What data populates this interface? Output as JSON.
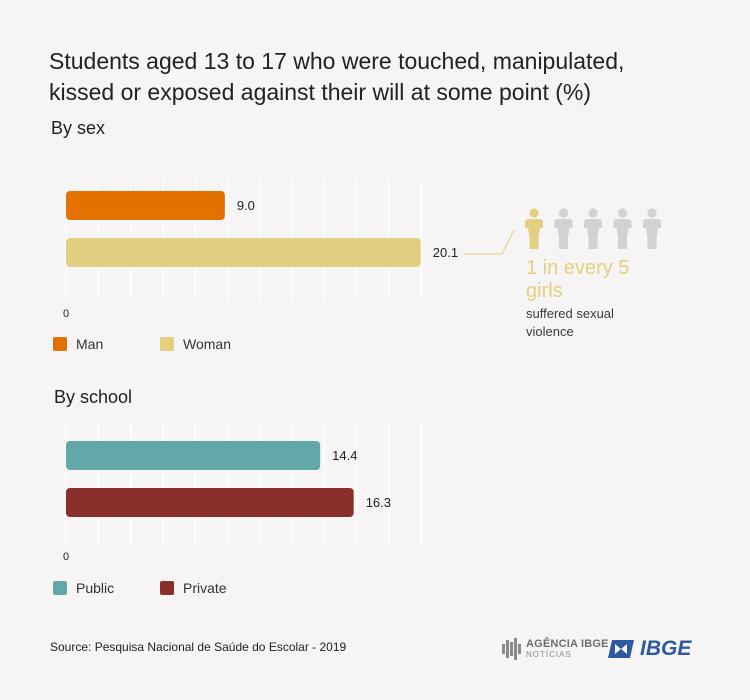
{
  "title": "Students aged 13 to 17 who were touched, manipulated, kissed or exposed against their will at some point (%)",
  "colors": {
    "man": "#e27100",
    "woman": "#e2cf80",
    "public": "#63a8a9",
    "private": "#89302a",
    "grid": "#ffffff",
    "person_highlight": "#e2cf80",
    "person_muted": "#cfd3d3"
  },
  "chart_data": [
    {
      "type": "bar",
      "orientation": "horizontal",
      "title": "By sex",
      "categories": [
        "Man",
        "Woman"
      ],
      "values": [
        9.0,
        20.1
      ],
      "value_labels": [
        "9.0",
        "20.1"
      ],
      "zero_label": "0",
      "legend": [
        "Man",
        "Woman"
      ],
      "legend_position": "bottom-left",
      "grid": true
    },
    {
      "type": "bar",
      "orientation": "horizontal",
      "title": "By school",
      "categories": [
        "Public",
        "Private"
      ],
      "values": [
        14.4,
        16.3
      ],
      "value_labels": [
        "14.4",
        "16.3"
      ],
      "zero_label": "0",
      "legend": [
        "Public",
        "Private"
      ],
      "legend_position": "bottom-left",
      "grid": true
    }
  ],
  "callout": {
    "big": "1 in every 5 girls",
    "small": "suffered sexual violence",
    "icon_count": 5,
    "icon_highlighted": 1
  },
  "source": "Source:  Pesquisa Nacional de Saúde do Escolar - 2019",
  "logos": {
    "agencia_line1": "AGÊNCIA IBGE",
    "agencia_line2": "NOTÍCIAS",
    "ibge": "IBGE"
  }
}
